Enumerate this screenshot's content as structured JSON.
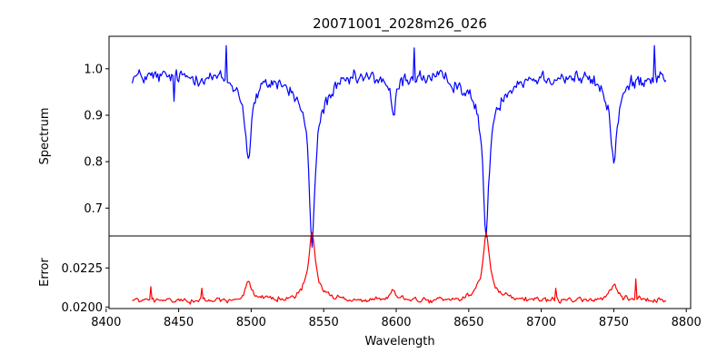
{
  "chart_data": {
    "type": "line",
    "title": "20071001_2028m26_026",
    "xlabel": "Wavelength",
    "xlim": [
      8402,
      8803
    ],
    "x_ticks": [
      8400,
      8450,
      8500,
      8550,
      8600,
      8650,
      8700,
      8750,
      8800
    ],
    "x_range": [
      8418,
      8786
    ],
    "grid": false,
    "panels": [
      {
        "id": "spectrum",
        "ylabel": "Spectrum",
        "ylim": [
          0.64,
          1.07
        ],
        "y_ticks": [
          0.7,
          0.8,
          0.9,
          1.0
        ],
        "y_tick_labels": [
          "0.7",
          "0.8",
          "0.9",
          "1.0"
        ],
        "series": [
          {
            "color": "#0000ff",
            "baseline": 0.983,
            "noise": 0.018,
            "lines": [
              {
                "center": 8498.0,
                "depth": 0.15,
                "width": 2.2
              },
              {
                "center": 8542.0,
                "depth": 0.31,
                "width": 2.4
              },
              {
                "center": 8598.0,
                "depth": 0.09,
                "width": 2.0
              },
              {
                "center": 8662.0,
                "depth": 0.3,
                "width": 2.3
              },
              {
                "center": 8750.0,
                "depth": 0.15,
                "width": 2.6
              }
            ],
            "wings": [
              {
                "center": 8542.0,
                "depth": 0.05,
                "width": 12.0
              },
              {
                "center": 8662.0,
                "depth": 0.05,
                "width": 12.0
              },
              {
                "center": 8498.0,
                "depth": 0.03,
                "width": 8.0
              },
              {
                "center": 8750.0,
                "depth": 0.03,
                "width": 8.0
              }
            ],
            "spikes": [
              {
                "x": 8483.0,
                "y": 1.05
              },
              {
                "x": 8612.0,
                "y": 1.045
              },
              {
                "x": 8778.0,
                "y": 1.05
              },
              {
                "x": 8447.0,
                "y": 0.93
              }
            ]
          }
        ]
      },
      {
        "id": "error",
        "ylabel": "Error",
        "ylim": [
          0.0199,
          0.02455
        ],
        "y_ticks": [
          0.02,
          0.0225
        ],
        "y_tick_labels": [
          "0.0200",
          "0.0225"
        ],
        "series": [
          {
            "color": "#ff0000",
            "baseline": 0.02042,
            "noise": 0.00018,
            "lines": [
              {
                "center": 8498.0,
                "depth": -0.0012,
                "width": 2.5
              },
              {
                "center": 8542.0,
                "depth": -0.004,
                "width": 2.6
              },
              {
                "center": 8598.0,
                "depth": -0.0006,
                "width": 2.5
              },
              {
                "center": 8662.0,
                "depth": -0.0039,
                "width": 2.6
              },
              {
                "center": 8750.0,
                "depth": -0.001,
                "width": 3.0
              }
            ],
            "wings": [
              {
                "center": 8542.0,
                "depth": -0.0004,
                "width": 10.0
              },
              {
                "center": 8662.0,
                "depth": -0.0004,
                "width": 10.0
              }
            ],
            "spikes": [
              {
                "x": 8431.0,
                "y": 0.0213
              },
              {
                "x": 8466.0,
                "y": 0.0212
              },
              {
                "x": 8710.0,
                "y": 0.0212
              },
              {
                "x": 8765.0,
                "y": 0.0218
              }
            ]
          }
        ]
      }
    ]
  }
}
